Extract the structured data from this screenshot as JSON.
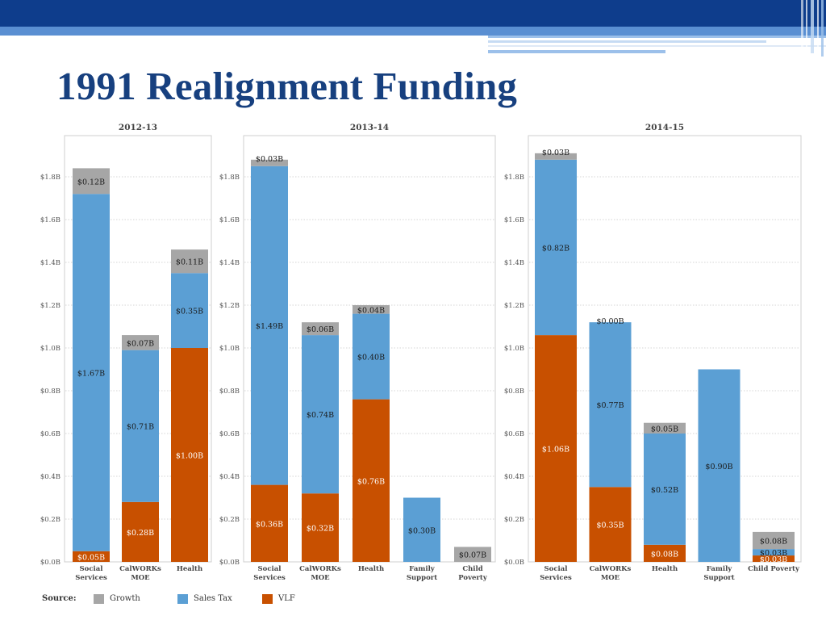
{
  "slide": {
    "title": "1991 Realignment Funding"
  },
  "colors": {
    "growth": "#a6a6a6",
    "sales_tax": "#5b9fd4",
    "vlf": "#c85000",
    "header_dark": "#0e3d8c",
    "header_light": "#5a8fd2",
    "title": "#17407f"
  },
  "legend": {
    "source_label": "Source:",
    "items": [
      {
        "key": "growth",
        "label": "Growth"
      },
      {
        "key": "sales_tax",
        "label": "Sales Tax"
      },
      {
        "key": "vlf",
        "label": "VLF"
      }
    ]
  },
  "chart_data": [
    {
      "type": "bar",
      "stacked": true,
      "title": "2012-13",
      "ylim": [
        0,
        1.9
      ],
      "y_ticks": [
        0,
        0.2,
        0.4,
        0.6,
        0.8,
        1.0,
        1.2,
        1.4,
        1.6,
        1.8
      ],
      "y_tick_labels": [
        "$0.0B",
        "$0.2B",
        "$0.4B",
        "$0.6B",
        "$0.8B",
        "$1.0B",
        "$1.2B",
        "$1.4B",
        "$1.6B",
        "$1.8B"
      ],
      "grid": true,
      "categories": [
        "Social\nServices",
        "CalWORKs\nMOE",
        "Health"
      ],
      "series": [
        {
          "name": "VLF",
          "values": [
            0.05,
            0.28,
            1.0
          ],
          "labels": [
            "$0.05B",
            "$0.28B",
            "$1.00B"
          ]
        },
        {
          "name": "Sales Tax",
          "values": [
            1.67,
            0.71,
            0.35
          ],
          "labels": [
            "$1.67B",
            "$0.71B",
            "$0.35B"
          ]
        },
        {
          "name": "Growth",
          "values": [
            0.12,
            0.07,
            0.11
          ],
          "labels": [
            "$0.12B",
            "$0.07B",
            "$0.11B"
          ]
        }
      ]
    },
    {
      "type": "bar",
      "stacked": true,
      "title": "2013-14",
      "ylim": [
        0,
        1.9
      ],
      "y_ticks": [
        0,
        0.2,
        0.4,
        0.6,
        0.8,
        1.0,
        1.2,
        1.4,
        1.6,
        1.8
      ],
      "y_tick_labels": [
        "$0.0B",
        "$0.2B",
        "$0.4B",
        "$0.6B",
        "$0.8B",
        "$1.0B",
        "$1.2B",
        "$1.4B",
        "$1.6B",
        "$1.8B"
      ],
      "grid": true,
      "categories": [
        "Social\nServices",
        "CalWORKs\nMOE",
        "Health",
        "Family\nSupport",
        "Child\nPoverty"
      ],
      "series": [
        {
          "name": "VLF",
          "values": [
            0.36,
            0.32,
            0.76,
            0,
            0
          ],
          "labels": [
            "$0.36B",
            "$0.32B",
            "$0.76B",
            "",
            ""
          ]
        },
        {
          "name": "Sales Tax",
          "values": [
            1.49,
            0.74,
            0.4,
            0.3,
            0
          ],
          "labels": [
            "$1.49B",
            "$0.74B",
            "$0.40B",
            "$0.30B",
            ""
          ]
        },
        {
          "name": "Growth",
          "values": [
            0.03,
            0.06,
            0.04,
            0,
            0.07
          ],
          "labels": [
            "$0.03B",
            "$0.06B",
            "$0.04B",
            "",
            "$0.07B"
          ]
        }
      ]
    },
    {
      "type": "bar",
      "stacked": true,
      "title": "2014-15",
      "ylim": [
        0,
        1.9
      ],
      "y_ticks": [
        0,
        0.2,
        0.4,
        0.6,
        0.8,
        1.0,
        1.2,
        1.4,
        1.6,
        1.8
      ],
      "y_tick_labels": [
        "$0.0B",
        "$0.2B",
        "$0.4B",
        "$0.6B",
        "$0.8B",
        "$1.0B",
        "$1.2B",
        "$1.4B",
        "$1.6B",
        "$1.8B"
      ],
      "grid": true,
      "categories": [
        "Social\nServices",
        "CalWORKs\nMOE",
        "Health",
        "Family\nSupport",
        "Child Poverty"
      ],
      "series": [
        {
          "name": "VLF",
          "values": [
            1.06,
            0.35,
            0.08,
            0,
            0.03
          ],
          "labels": [
            "$1.06B",
            "$0.35B",
            "$0.08B",
            "",
            "$0.03B"
          ]
        },
        {
          "name": "Sales Tax",
          "values": [
            0.82,
            0.77,
            0.52,
            0.9,
            0.03
          ],
          "labels": [
            "$0.82B",
            "$0.77B",
            "$0.52B",
            "$0.90B",
            "$0.03B"
          ]
        },
        {
          "name": "Growth",
          "values": [
            0.03,
            0.0,
            0.05,
            0,
            0.08
          ],
          "labels": [
            "$0.03B",
            "$0.00B",
            "$0.05B",
            "",
            "$0.08B"
          ]
        }
      ]
    }
  ]
}
